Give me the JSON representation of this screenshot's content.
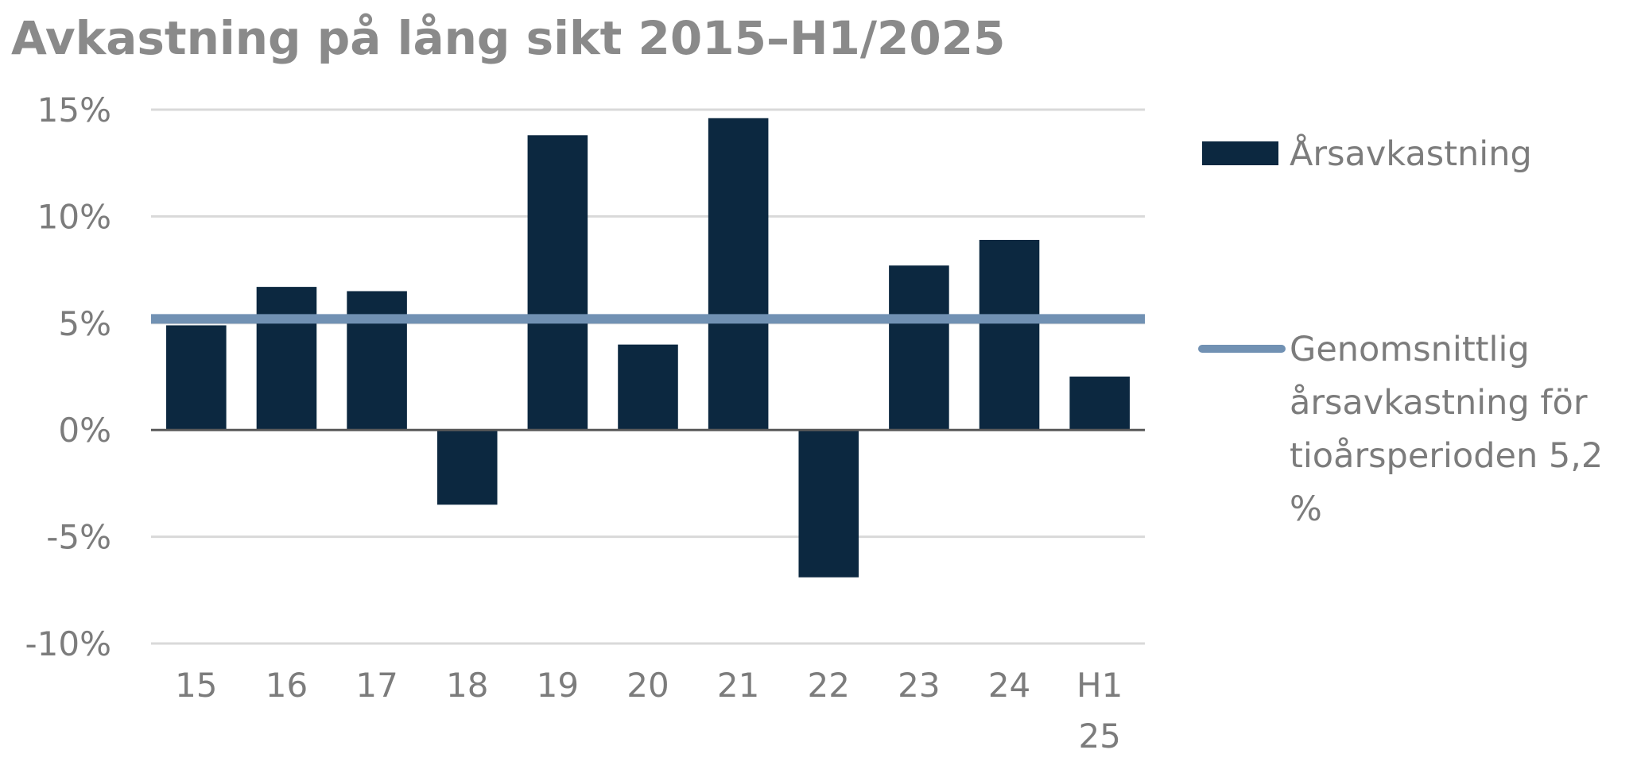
{
  "chart_data": {
    "type": "bar",
    "title": "Avkastning på lång sikt 2015–H1/2025",
    "xlabel": "",
    "ylabel": "",
    "categories": [
      "15",
      "16",
      "17",
      "18",
      "19",
      "20",
      "21",
      "22",
      "23",
      "24",
      "H1 25"
    ],
    "category_lines": [
      [
        "15"
      ],
      [
        "16"
      ],
      [
        "17"
      ],
      [
        "18"
      ],
      [
        "19"
      ],
      [
        "20"
      ],
      [
        "21"
      ],
      [
        "22"
      ],
      [
        "23"
      ],
      [
        "24"
      ],
      [
        "H1",
        "25"
      ]
    ],
    "series": [
      {
        "name": "Årsavkastning",
        "type": "bar",
        "color": "#0c2840",
        "values": [
          4.9,
          6.7,
          6.5,
          -3.5,
          13.8,
          4.0,
          14.6,
          -6.9,
          7.7,
          8.9,
          2.5
        ]
      },
      {
        "name": "Genomsnittlig årsavkastning för tioårsperioden 5,2 %",
        "type": "line",
        "color": "#7191b3",
        "constant_value": 5.2,
        "legend_lines": [
          "Genomsnittlig",
          "årsavkastning för",
          "tioårsperioden 5,2",
          "%"
        ]
      }
    ],
    "ylim": [
      -10,
      15
    ],
    "yticks": [
      15,
      10,
      5,
      0,
      -5,
      -10
    ],
    "ytick_labels": [
      "15%",
      "10%",
      "5%",
      "0%",
      "-5%",
      "-10%"
    ],
    "grid": true,
    "legend_position": "right",
    "colors": {
      "gridline": "#d9d9d9",
      "zero_axis": "#595959",
      "text": "#7c7c7c"
    }
  }
}
